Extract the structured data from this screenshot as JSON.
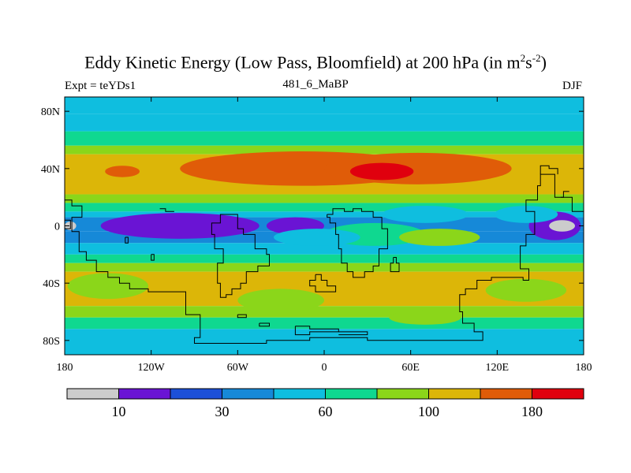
{
  "chart_data": {
    "type": "heatmap",
    "title_main": "Eddy Kinetic Energy (Low Pass, Bloomfield) at 200 hPa (in m",
    "title_sup1": "2",
    "title_mid": "s",
    "title_sup2": "-2",
    "title_end": ")",
    "subtitle_left": "Expt = teYDs1",
    "subtitle_center": "481_6_MaBP",
    "subtitle_right": "DJF",
    "x_range": [
      -180,
      180
    ],
    "y_range": [
      -90,
      90
    ],
    "x_ticks": [
      {
        "value": -180,
        "label": "180"
      },
      {
        "value": -120,
        "label": "120W"
      },
      {
        "value": -60,
        "label": "60W"
      },
      {
        "value": 0,
        "label": "0"
      },
      {
        "value": 60,
        "label": "60E"
      },
      {
        "value": 120,
        "label": "120E"
      },
      {
        "value": 180,
        "label": "180"
      }
    ],
    "y_ticks": [
      {
        "value": 80,
        "label": "80N"
      },
      {
        "value": 40,
        "label": "40N"
      },
      {
        "value": 0,
        "label": "0"
      },
      {
        "value": -40,
        "label": "40S"
      },
      {
        "value": -80,
        "label": "80S"
      }
    ],
    "colorbar": {
      "colors": [
        "#cccccc",
        "#6a14d4",
        "#1c50d8",
        "#1689d8",
        "#0fbedf",
        "#0fd890",
        "#8bd61a",
        "#dcb608",
        "#e05c08",
        "#e0000e"
      ],
      "labels": [
        {
          "boundary": 1,
          "text": "10"
        },
        {
          "boundary": 3,
          "text": "30"
        },
        {
          "boundary": 5,
          "text": "60"
        },
        {
          "boundary": 7,
          "text": "100"
        },
        {
          "boundary": 9,
          "text": "180"
        }
      ]
    },
    "bands": [
      {
        "lat_top": 90,
        "lat_bottom": 78,
        "level": 4
      },
      {
        "lat_top": 78,
        "lat_bottom": 66,
        "level": 4
      },
      {
        "lat_top": 66,
        "lat_bottom": 56,
        "level": 5
      },
      {
        "lat_top": 56,
        "lat_bottom": 50,
        "level": 6
      },
      {
        "lat_top": 50,
        "lat_bottom": 22,
        "level": 7
      },
      {
        "lat_top": 22,
        "lat_bottom": 16,
        "level": 6
      },
      {
        "lat_top": 16,
        "lat_bottom": 10,
        "level": 5
      },
      {
        "lat_top": 10,
        "lat_bottom": 6,
        "level": 4
      },
      {
        "lat_top": 6,
        "lat_bottom": -4,
        "level": 3
      },
      {
        "lat_top": -4,
        "lat_bottom": -12,
        "level": 3
      },
      {
        "lat_top": -12,
        "lat_bottom": -20,
        "level": 4
      },
      {
        "lat_top": -20,
        "lat_bottom": -26,
        "level": 5
      },
      {
        "lat_top": -26,
        "lat_bottom": -32,
        "level": 6
      },
      {
        "lat_top": -32,
        "lat_bottom": -56,
        "level": 7
      },
      {
        "lat_top": -56,
        "lat_bottom": -64,
        "level": 6
      },
      {
        "lat_top": -64,
        "lat_bottom": -72,
        "level": 5
      },
      {
        "lat_top": -72,
        "lat_bottom": -90,
        "level": 4
      }
    ],
    "patches": [
      {
        "lon": -140,
        "lat": 38,
        "rx": 12,
        "ry": 4,
        "level": 8
      },
      {
        "lon": -15,
        "lat": 40,
        "rx": 85,
        "ry": 12,
        "level": 8
      },
      {
        "lon": 65,
        "lat": 40,
        "rx": 65,
        "ry": 11,
        "level": 8
      },
      {
        "lon": 40,
        "lat": 38,
        "rx": 22,
        "ry": 6,
        "level": 9
      },
      {
        "lon": -100,
        "lat": 0,
        "rx": 55,
        "ry": 9,
        "level": 1
      },
      {
        "lon": -20,
        "lat": 0,
        "rx": 20,
        "ry": 6,
        "level": 1
      },
      {
        "lon": 160,
        "lat": 0,
        "rx": 18,
        "ry": 10,
        "level": 1
      },
      {
        "lon": 165,
        "lat": 0,
        "rx": 9,
        "ry": 4,
        "level": 0
      },
      {
        "lon": -176,
        "lat": 0,
        "rx": 4,
        "ry": 3,
        "level": 0
      },
      {
        "lon": 35,
        "lat": -6,
        "rx": 35,
        "ry": 8,
        "level": 5
      },
      {
        "lon": 80,
        "lat": -8,
        "rx": 28,
        "ry": 6,
        "level": 6
      },
      {
        "lon": -5,
        "lat": -8,
        "rx": 30,
        "ry": 6,
        "level": 4
      },
      {
        "lon": 70,
        "lat": 8,
        "rx": 30,
        "ry": 6,
        "level": 4
      },
      {
        "lon": 140,
        "lat": 8,
        "rx": 22,
        "ry": 6,
        "level": 4
      },
      {
        "lon": -150,
        "lat": -42,
        "rx": 28,
        "ry": 9,
        "level": 6
      },
      {
        "lon": 140,
        "lat": -45,
        "rx": 28,
        "ry": 8,
        "level": 6
      },
      {
        "lon": -30,
        "lat": -52,
        "rx": 30,
        "ry": 8,
        "level": 6
      },
      {
        "lon": 70,
        "lat": -64,
        "rx": 25,
        "ry": 5,
        "level": 6
      }
    ],
    "coastlines": [
      [
        [
          -180,
          18
        ],
        [
          -175,
          18
        ],
        [
          -175,
          14
        ],
        [
          -168,
          14
        ],
        [
          -168,
          6
        ],
        [
          -175,
          6
        ],
        [
          -175,
          -4
        ],
        [
          -170,
          -4
        ],
        [
          -170,
          -18
        ],
        [
          -165,
          -18
        ],
        [
          -165,
          -24
        ],
        [
          -158,
          -24
        ],
        [
          -158,
          -32
        ],
        [
          -150,
          -32
        ],
        [
          -150,
          -36
        ],
        [
          -142,
          -36
        ],
        [
          -142,
          -40
        ],
        [
          -135,
          -40
        ],
        [
          -135,
          -44
        ],
        [
          -122,
          -44
        ],
        [
          -122,
          -46
        ],
        [
          -96,
          -46
        ],
        [
          -96,
          -62
        ],
        [
          -86,
          -62
        ],
        [
          -86,
          -78
        ],
        [
          -90,
          -78
        ],
        [
          -90,
          -82
        ],
        [
          -40,
          -82
        ],
        [
          -40,
          -80
        ],
        [
          -10,
          -80
        ],
        [
          -10,
          -78
        ],
        [
          30,
          -78
        ],
        [
          30,
          -80
        ],
        [
          110,
          -80
        ],
        [
          110,
          -74
        ],
        [
          104,
          -74
        ],
        [
          104,
          -68
        ],
        [
          96,
          -68
        ],
        [
          96,
          -60
        ],
        [
          94,
          -60
        ],
        [
          94,
          -48
        ],
        [
          98,
          -48
        ],
        [
          98,
          -44
        ],
        [
          106,
          -44
        ],
        [
          106,
          -38
        ],
        [
          116,
          -38
        ],
        [
          116,
          -36
        ],
        [
          138,
          -36
        ],
        [
          138,
          -38
        ],
        [
          142,
          -38
        ],
        [
          142,
          -30
        ],
        [
          136,
          -30
        ],
        [
          136,
          -14
        ],
        [
          140,
          -14
        ],
        [
          140,
          -6
        ],
        [
          146,
          -6
        ],
        [
          146,
          10
        ],
        [
          140,
          10
        ],
        [
          140,
          18
        ],
        [
          148,
          18
        ],
        [
          148,
          28
        ],
        [
          150,
          28
        ],
        [
          150,
          36
        ],
        [
          160,
          36
        ],
        [
          160,
          20
        ],
        [
          172,
          20
        ],
        [
          172,
          10
        ],
        [
          180,
          10
        ]
      ],
      [
        [
          -69,
          8
        ],
        [
          -60,
          8
        ],
        [
          -60,
          -2
        ],
        [
          -56,
          -2
        ],
        [
          -56,
          -6
        ],
        [
          -48,
          -6
        ],
        [
          -48,
          -16
        ],
        [
          -40,
          -16
        ],
        [
          -40,
          -20
        ],
        [
          -38,
          -20
        ],
        [
          -38,
          -28
        ],
        [
          -46,
          -28
        ],
        [
          -46,
          -32
        ],
        [
          -54,
          -32
        ],
        [
          -54,
          -40
        ],
        [
          -58,
          -40
        ],
        [
          -58,
          -44
        ],
        [
          -64,
          -44
        ],
        [
          -64,
          -48
        ],
        [
          -68,
          -48
        ],
        [
          -68,
          -50
        ],
        [
          -72,
          -50
        ],
        [
          -72,
          -40
        ],
        [
          -74,
          -40
        ],
        [
          -74,
          -26
        ],
        [
          -70,
          -26
        ],
        [
          -70,
          -16
        ],
        [
          -76,
          -16
        ],
        [
          -76,
          -6
        ],
        [
          -78,
          -6
        ],
        [
          -78,
          2
        ],
        [
          -72,
          2
        ],
        [
          -72,
          8
        ],
        [
          -69,
          8
        ]
      ],
      [
        [
          -114,
          12
        ],
        [
          -110,
          12
        ],
        [
          -110,
          10
        ],
        [
          -104,
          10
        ]
      ],
      [
        [
          2,
          8
        ],
        [
          6,
          8
        ],
        [
          6,
          12
        ],
        [
          14,
          12
        ],
        [
          14,
          10
        ],
        [
          20,
          10
        ],
        [
          20,
          12
        ],
        [
          26,
          12
        ],
        [
          26,
          10
        ],
        [
          34,
          10
        ],
        [
          34,
          6
        ],
        [
          40,
          6
        ],
        [
          40,
          -2
        ],
        [
          44,
          -2
        ],
        [
          44,
          -16
        ],
        [
          38,
          -16
        ],
        [
          38,
          -28
        ],
        [
          34,
          -28
        ],
        [
          34,
          -32
        ],
        [
          28,
          -32
        ],
        [
          28,
          -36
        ],
        [
          20,
          -36
        ],
        [
          20,
          -32
        ],
        [
          16,
          -32
        ],
        [
          16,
          -26
        ],
        [
          12,
          -26
        ],
        [
          12,
          -16
        ],
        [
          10,
          -16
        ],
        [
          10,
          -6
        ],
        [
          8,
          -6
        ],
        [
          8,
          2
        ],
        [
          4,
          2
        ],
        [
          4,
          6
        ],
        [
          2,
          6
        ],
        [
          2,
          8
        ]
      ],
      [
        [
          -6,
          -34
        ],
        [
          -2,
          -34
        ],
        [
          -2,
          -38
        ],
        [
          2,
          -38
        ],
        [
          2,
          -42
        ],
        [
          8,
          -42
        ],
        [
          8,
          -46
        ],
        [
          -6,
          -46
        ],
        [
          -6,
          -42
        ],
        [
          -10,
          -42
        ],
        [
          -10,
          -38
        ],
        [
          -6,
          -38
        ],
        [
          -6,
          -34
        ]
      ],
      [
        [
          48,
          -22
        ],
        [
          50,
          -22
        ],
        [
          50,
          -26
        ],
        [
          52,
          -26
        ],
        [
          52,
          -32
        ],
        [
          46,
          -32
        ],
        [
          46,
          -26
        ],
        [
          48,
          -26
        ],
        [
          48,
          -22
        ]
      ],
      [
        [
          -138,
          -8
        ],
        [
          -136,
          -8
        ],
        [
          -136,
          -12
        ],
        [
          -138,
          -12
        ],
        [
          -138,
          -8
        ]
      ],
      [
        [
          -120,
          -20
        ],
        [
          -118,
          -20
        ],
        [
          -118,
          -24
        ],
        [
          -120,
          -24
        ],
        [
          -120,
          -20
        ]
      ],
      [
        [
          -60,
          -62
        ],
        [
          -54,
          -62
        ],
        [
          -54,
          -64
        ],
        [
          -60,
          -64
        ],
        [
          -60,
          -62
        ]
      ],
      [
        [
          -45,
          -68
        ],
        [
          -38,
          -68
        ],
        [
          -38,
          -70
        ],
        [
          -45,
          -70
        ],
        [
          -45,
          -68
        ]
      ],
      [
        [
          -20,
          -70
        ],
        [
          -10,
          -70
        ],
        [
          -10,
          -72
        ],
        [
          10,
          -72
        ],
        [
          10,
          -74
        ],
        [
          -10,
          -74
        ],
        [
          -10,
          -76
        ],
        [
          -20,
          -76
        ],
        [
          -20,
          -70
        ]
      ],
      [
        [
          10,
          -74
        ],
        [
          30,
          -74
        ],
        [
          30,
          -76
        ],
        [
          10,
          -76
        ]
      ],
      [
        [
          150,
          36
        ],
        [
          150,
          42
        ],
        [
          156,
          42
        ],
        [
          156,
          40
        ],
        [
          162,
          40
        ],
        [
          162,
          36
        ]
      ],
      [
        [
          164,
          20
        ],
        [
          166,
          20
        ],
        [
          166,
          24
        ],
        [
          170,
          24
        ]
      ],
      [
        [
          -180,
          -2
        ],
        [
          -176,
          -2
        ],
        [
          -176,
          4
        ],
        [
          -180,
          4
        ]
      ]
    ]
  }
}
